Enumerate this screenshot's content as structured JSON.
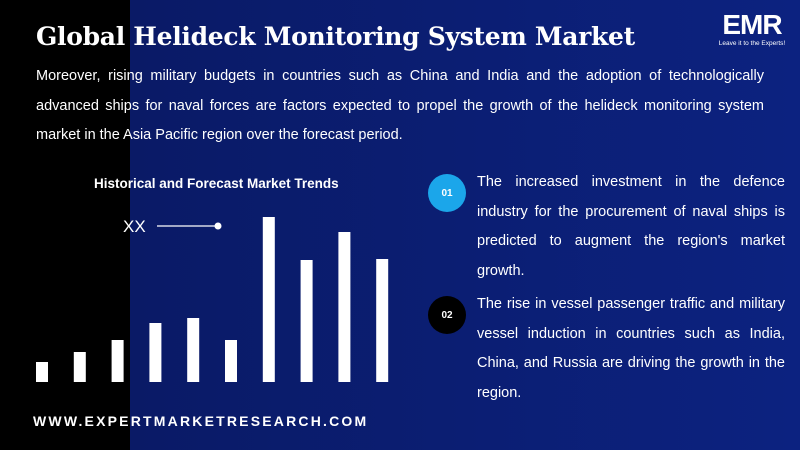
{
  "header": {
    "title": "Global Helideck Monitoring System Market",
    "paragraph": "Moreover, rising military budgets in countries such as China and India and the adoption of technologically advanced ships for naval forces are factors expected to propel the growth of the helideck monitoring system market in the Asia Pacific region over the forecast period."
  },
  "logo": {
    "name": "EMR",
    "tagline": "Leave it to the Experts!"
  },
  "chart_data": {
    "type": "bar",
    "title": "Historical and Forecast Market Trends",
    "annotation": "XX",
    "values": [
      20,
      30,
      42,
      59,
      64,
      42,
      165,
      122,
      150,
      123
    ],
    "color": "#ffffff"
  },
  "points": [
    {
      "number": "01",
      "text": "The increased investment in the defence industry for the procurement of naval ships is predicted to augment the region's market growth."
    },
    {
      "number": "02",
      "text": "The rise in vessel passenger traffic and military vessel induction in countries such as India, China, and Russia are driving the growth in the region."
    }
  ],
  "footer": {
    "website": "WWW.EXPERTMARKETRESEARCH.COM"
  }
}
